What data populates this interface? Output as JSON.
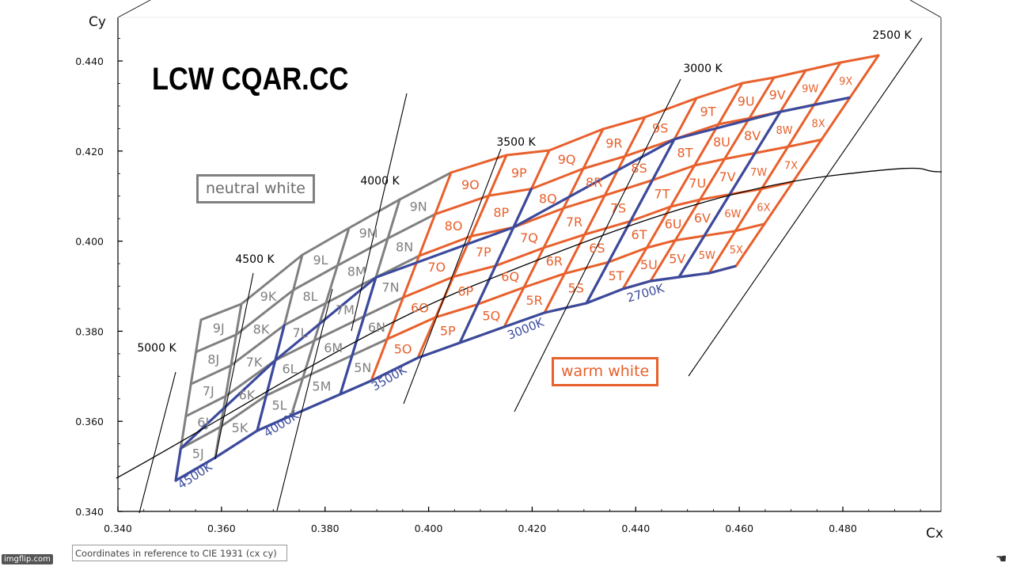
{
  "chart_data": {
    "type": "diagram",
    "xlabel": "Cx",
    "ylabel": "Cy",
    "xlim": [
      0.34,
      0.5
    ],
    "ylim": [
      0.34,
      0.45
    ],
    "x_ticks": [
      "0.340",
      "0.360",
      "0.380",
      "0.400",
      "0.420",
      "0.440",
      "0.460",
      "0.480"
    ],
    "y_ticks": [
      "0.340",
      "0.360",
      "0.380",
      "0.400",
      "0.420",
      "0.440"
    ],
    "cct_bands": [
      "4500K",
      "4000K",
      "3500K",
      "3000K",
      "2700K"
    ],
    "cct_line_labels": [
      "5000 K",
      "4500 K",
      "4000 K",
      "3500 K",
      "3000 K",
      "2500 K"
    ],
    "rows": [
      "5",
      "6",
      "7",
      "8",
      "9"
    ],
    "columns": [
      "J",
      "K",
      "L",
      "M",
      "N",
      "O",
      "P",
      "Q",
      "R",
      "S",
      "T",
      "U",
      "V",
      "W",
      "X"
    ],
    "bins": [
      [
        "5J",
        "5K",
        "5L",
        "5M",
        "5N",
        "5O",
        "5P",
        "5Q",
        "5R",
        "5S",
        "5T",
        "5U",
        "5V",
        "5W",
        "5X"
      ],
      [
        "6J",
        "6K",
        "6L",
        "6M",
        "6N",
        "6O",
        "6P",
        "6Q",
        "6R",
        "6S",
        "6T",
        "6U",
        "6V",
        "6W",
        "6X"
      ],
      [
        "7J",
        "7K",
        "7L",
        "7M",
        "7N",
        "7O",
        "7P",
        "7Q",
        "7R",
        "7S",
        "7T",
        "7U",
        "7V",
        "7W",
        "7X"
      ],
      [
        "8J",
        "8K",
        "8L",
        "8M",
        "8N",
        "8O",
        "8P",
        "8Q",
        "8R",
        "8S",
        "8T",
        "8U",
        "8V",
        "8W",
        "8X"
      ],
      [
        "9J",
        "9K",
        "9L",
        "9M",
        "9N",
        "9O",
        "9P",
        "9Q",
        "9R",
        "9S",
        "9T",
        "9U",
        "9V",
        "9W",
        "9X"
      ]
    ],
    "neutral_columns": [
      "J",
      "K",
      "L",
      "M",
      "N"
    ],
    "warm_columns": [
      "O",
      "P",
      "Q",
      "R",
      "S",
      "T",
      "U",
      "V",
      "W",
      "X"
    ],
    "grid": false,
    "colors": {
      "neutral": "#808080",
      "warm": "#e8602c",
      "band": "#3b4a9c",
      "axis": "#000000"
    }
  },
  "labels": {
    "neutral": "neutral white",
    "warm": "warm white",
    "brand": "LCW CQAR.CC",
    "footnote": "Coordinates in reference to CIE 1931 (cx cy)",
    "watermark": "imgflip.com"
  },
  "icons": {
    "corner": "hand-cursor-icon"
  }
}
